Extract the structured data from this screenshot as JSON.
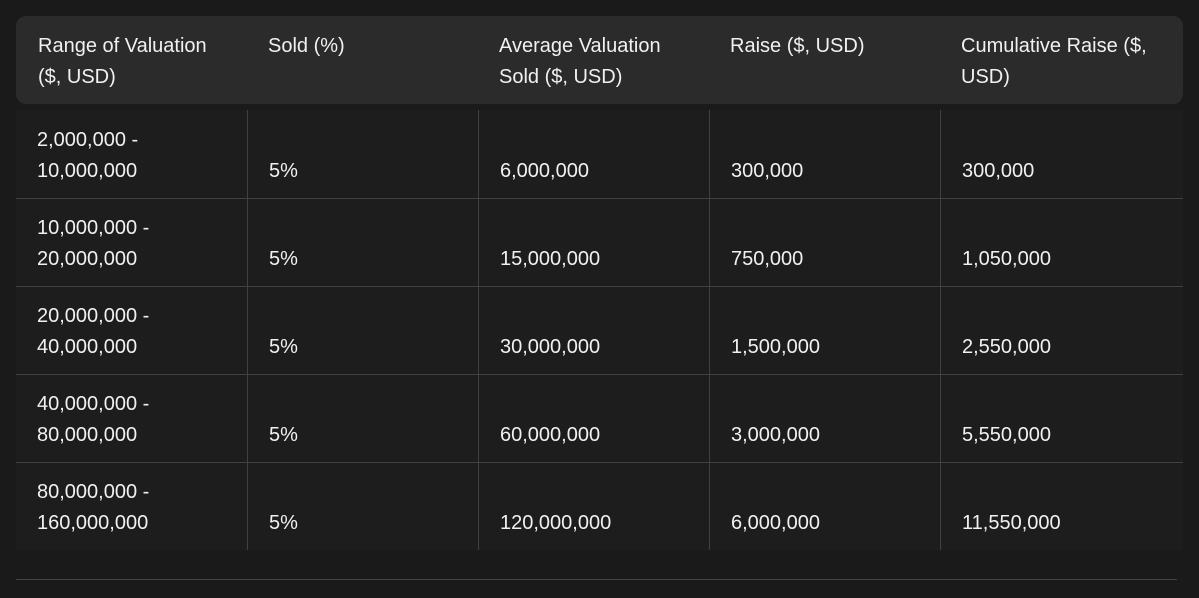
{
  "table": {
    "headers": [
      "Range of Valuation ($, USD)",
      "Sold (%)",
      "Average Valuation Sold ($, USD)",
      "Raise ($, USD)",
      "Cumulative Raise ($, USD)"
    ],
    "rows": [
      [
        "2,000,000 - 10,000,000",
        "5%",
        "6,000,000",
        "300,000",
        "300,000"
      ],
      [
        "10,000,000 - 20,000,000",
        "5%",
        "15,000,000",
        "750,000",
        "1,050,000"
      ],
      [
        "20,000,000 - 40,000,000",
        "5%",
        "30,000,000",
        "1,500,000",
        "2,550,000"
      ],
      [
        "40,000,000 - 80,000,000",
        "5%",
        "60,000,000",
        "3,000,000",
        "5,550,000"
      ],
      [
        "80,000,000 - 160,000,000",
        "5%",
        "120,000,000",
        "6,000,000",
        "11,550,000"
      ]
    ]
  },
  "colors": {
    "page_bg": "#1a1a1a",
    "header_bg": "#2b2b2b",
    "row_bg": "#1d1d1d",
    "divider": "#414141",
    "text": "#f1f1f1"
  }
}
